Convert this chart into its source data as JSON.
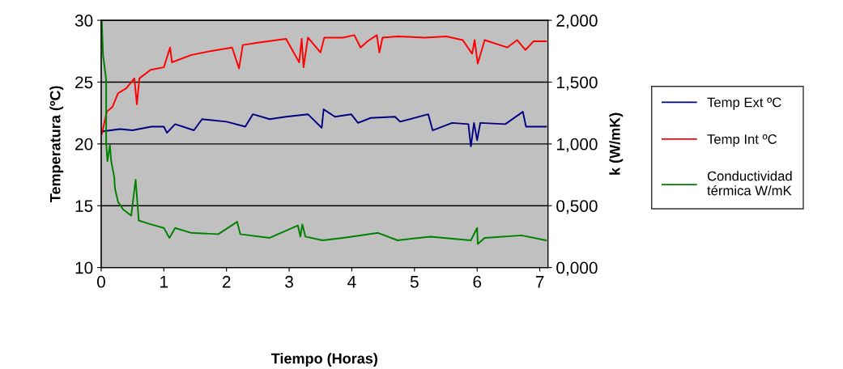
{
  "chart_data": {
    "type": "line",
    "xlabel": "Tiempo (Horas)",
    "ylabel": "Temperatura (ºC)",
    "y2label": "k (W/mK)",
    "xlim": [
      0,
      7.13
    ],
    "xticks": [
      0,
      1,
      2,
      3,
      4,
      5,
      6,
      7
    ],
    "ylim": [
      10,
      30
    ],
    "yticks": [
      10,
      15,
      20,
      25,
      30
    ],
    "y2lim": [
      0,
      2
    ],
    "y2ticks": [
      {
        "value": 0,
        "label": "0,000"
      },
      {
        "value": 0.5,
        "label": "0,500"
      },
      {
        "value": 1,
        "label": "1,000"
      },
      {
        "value": 1.5,
        "label": "1,500"
      },
      {
        "value": 2,
        "label": "2,000"
      }
    ],
    "grid": "y",
    "legend": "right",
    "marker": "none",
    "line_style": "solid",
    "series": [
      {
        "name": "Temp Ext ºC",
        "color": "#000080",
        "x": [
          0.0,
          0.3,
          0.5,
          0.8,
          1.0,
          1.05,
          1.18,
          1.48,
          1.61,
          2.0,
          2.3,
          2.42,
          2.69,
          2.95,
          3.3,
          3.52,
          3.55,
          3.73,
          3.99,
          4.1,
          4.3,
          4.69,
          4.77,
          5.22,
          5.29,
          5.6,
          5.86,
          5.9,
          5.95,
          6.0,
          6.05,
          6.45,
          6.73,
          6.78,
          7.1
        ],
        "values": [
          21.0,
          21.2,
          21.1,
          21.4,
          21.4,
          20.9,
          21.6,
          21.1,
          22.0,
          21.8,
          21.4,
          22.4,
          22.0,
          22.2,
          22.4,
          21.3,
          22.8,
          22.2,
          22.4,
          21.7,
          22.1,
          22.2,
          21.8,
          22.4,
          21.1,
          21.7,
          21.6,
          19.8,
          21.7,
          20.3,
          21.7,
          21.6,
          22.6,
          21.4,
          21.4
        ]
      },
      {
        "name": "Temp Int ºC",
        "color": "#ff0000",
        "x": [
          0.01,
          0.09,
          0.18,
          0.27,
          0.4,
          0.53,
          0.57,
          0.61,
          0.79,
          1.0,
          1.1,
          1.13,
          1.44,
          1.74,
          2.09,
          2.2,
          2.26,
          2.52,
          2.95,
          3.16,
          3.2,
          3.23,
          3.3,
          3.5,
          3.56,
          3.86,
          4.04,
          4.14,
          4.25,
          4.4,
          4.44,
          4.49,
          4.73,
          5.16,
          5.51,
          5.77,
          5.92,
          5.96,
          6.01,
          6.12,
          6.48,
          6.64,
          6.77,
          6.9,
          7.1
        ],
        "values": [
          20.8,
          22.6,
          23.0,
          24.1,
          24.5,
          25.3,
          23.2,
          25.3,
          26.0,
          26.2,
          27.8,
          26.6,
          27.2,
          27.5,
          27.8,
          26.1,
          28.0,
          28.2,
          28.5,
          26.6,
          28.5,
          26.2,
          28.6,
          27.4,
          28.6,
          28.6,
          28.8,
          27.8,
          28.3,
          28.8,
          27.4,
          28.6,
          28.7,
          28.6,
          28.7,
          28.4,
          27.3,
          28.4,
          26.5,
          28.4,
          27.8,
          28.4,
          27.6,
          28.3,
          28.3
        ]
      },
      {
        "name": "Conductividad\ntérmica W/mK",
        "color": "#008000",
        "axis": "y2",
        "x": [
          0.0,
          0.01,
          0.03,
          0.08,
          0.08,
          0.1,
          0.14,
          0.16,
          0.21,
          0.22,
          0.27,
          0.35,
          0.48,
          0.55,
          0.6,
          0.79,
          1.0,
          1.09,
          1.18,
          1.44,
          1.87,
          2.17,
          2.22,
          2.69,
          3.14,
          3.18,
          3.21,
          3.26,
          3.53,
          3.86,
          4.42,
          4.73,
          5.25,
          5.9,
          6.0,
          6.01,
          6.12,
          6.71,
          7.1
        ],
        "values": [
          2.0,
          2.0,
          1.72,
          1.52,
          1.01,
          0.86,
          0.99,
          0.86,
          0.73,
          0.64,
          0.53,
          0.47,
          0.42,
          0.71,
          0.38,
          0.35,
          0.32,
          0.24,
          0.32,
          0.28,
          0.27,
          0.37,
          0.27,
          0.24,
          0.34,
          0.25,
          0.35,
          0.25,
          0.22,
          0.24,
          0.28,
          0.22,
          0.25,
          0.22,
          0.32,
          0.19,
          0.24,
          0.26,
          0.22
        ]
      }
    ]
  }
}
